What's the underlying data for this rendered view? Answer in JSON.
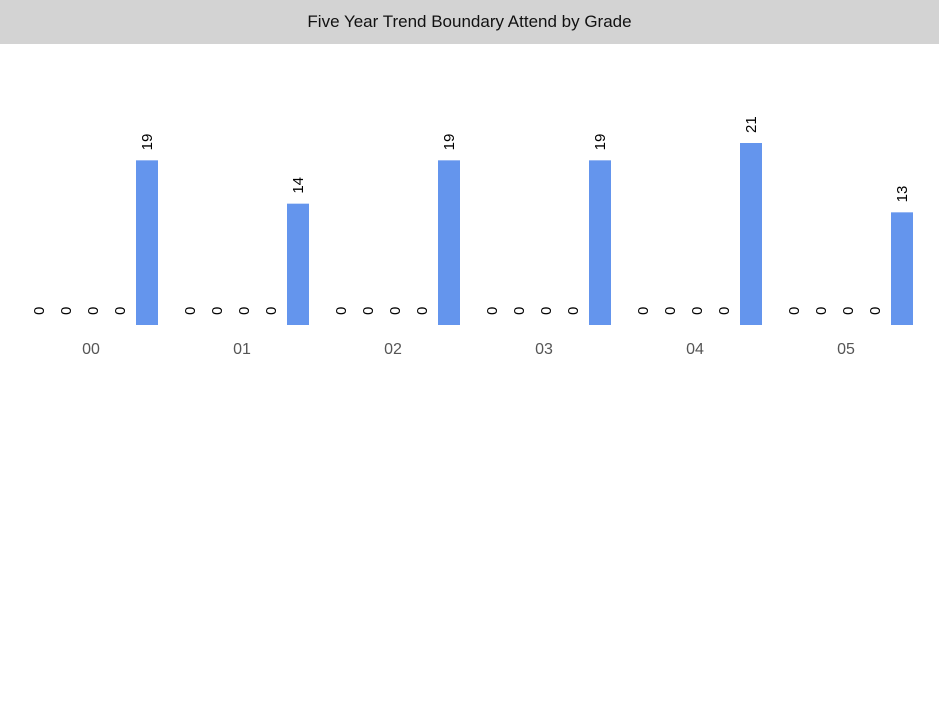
{
  "chart_data": {
    "type": "bar",
    "title": "Five Year Trend Boundary Attend by Grade",
    "categories": [
      "00",
      "01",
      "02",
      "03",
      "04",
      "05"
    ],
    "series": [
      {
        "values": [
          0,
          0,
          0,
          0,
          0,
          0
        ]
      },
      {
        "values": [
          0,
          0,
          0,
          0,
          0,
          0
        ]
      },
      {
        "values": [
          0,
          0,
          0,
          0,
          0,
          0
        ]
      },
      {
        "values": [
          0,
          0,
          0,
          0,
          0,
          0
        ]
      },
      {
        "values": [
          19,
          14,
          19,
          19,
          21,
          13
        ]
      }
    ],
    "colors": [
      "#6495ed",
      "#6495ed",
      "#6495ed",
      "#6495ed",
      "#6495ed"
    ],
    "xlabel": "",
    "ylabel": "",
    "ylim": [
      0,
      21
    ],
    "grid": false,
    "legend": "none",
    "data_labels": true
  }
}
